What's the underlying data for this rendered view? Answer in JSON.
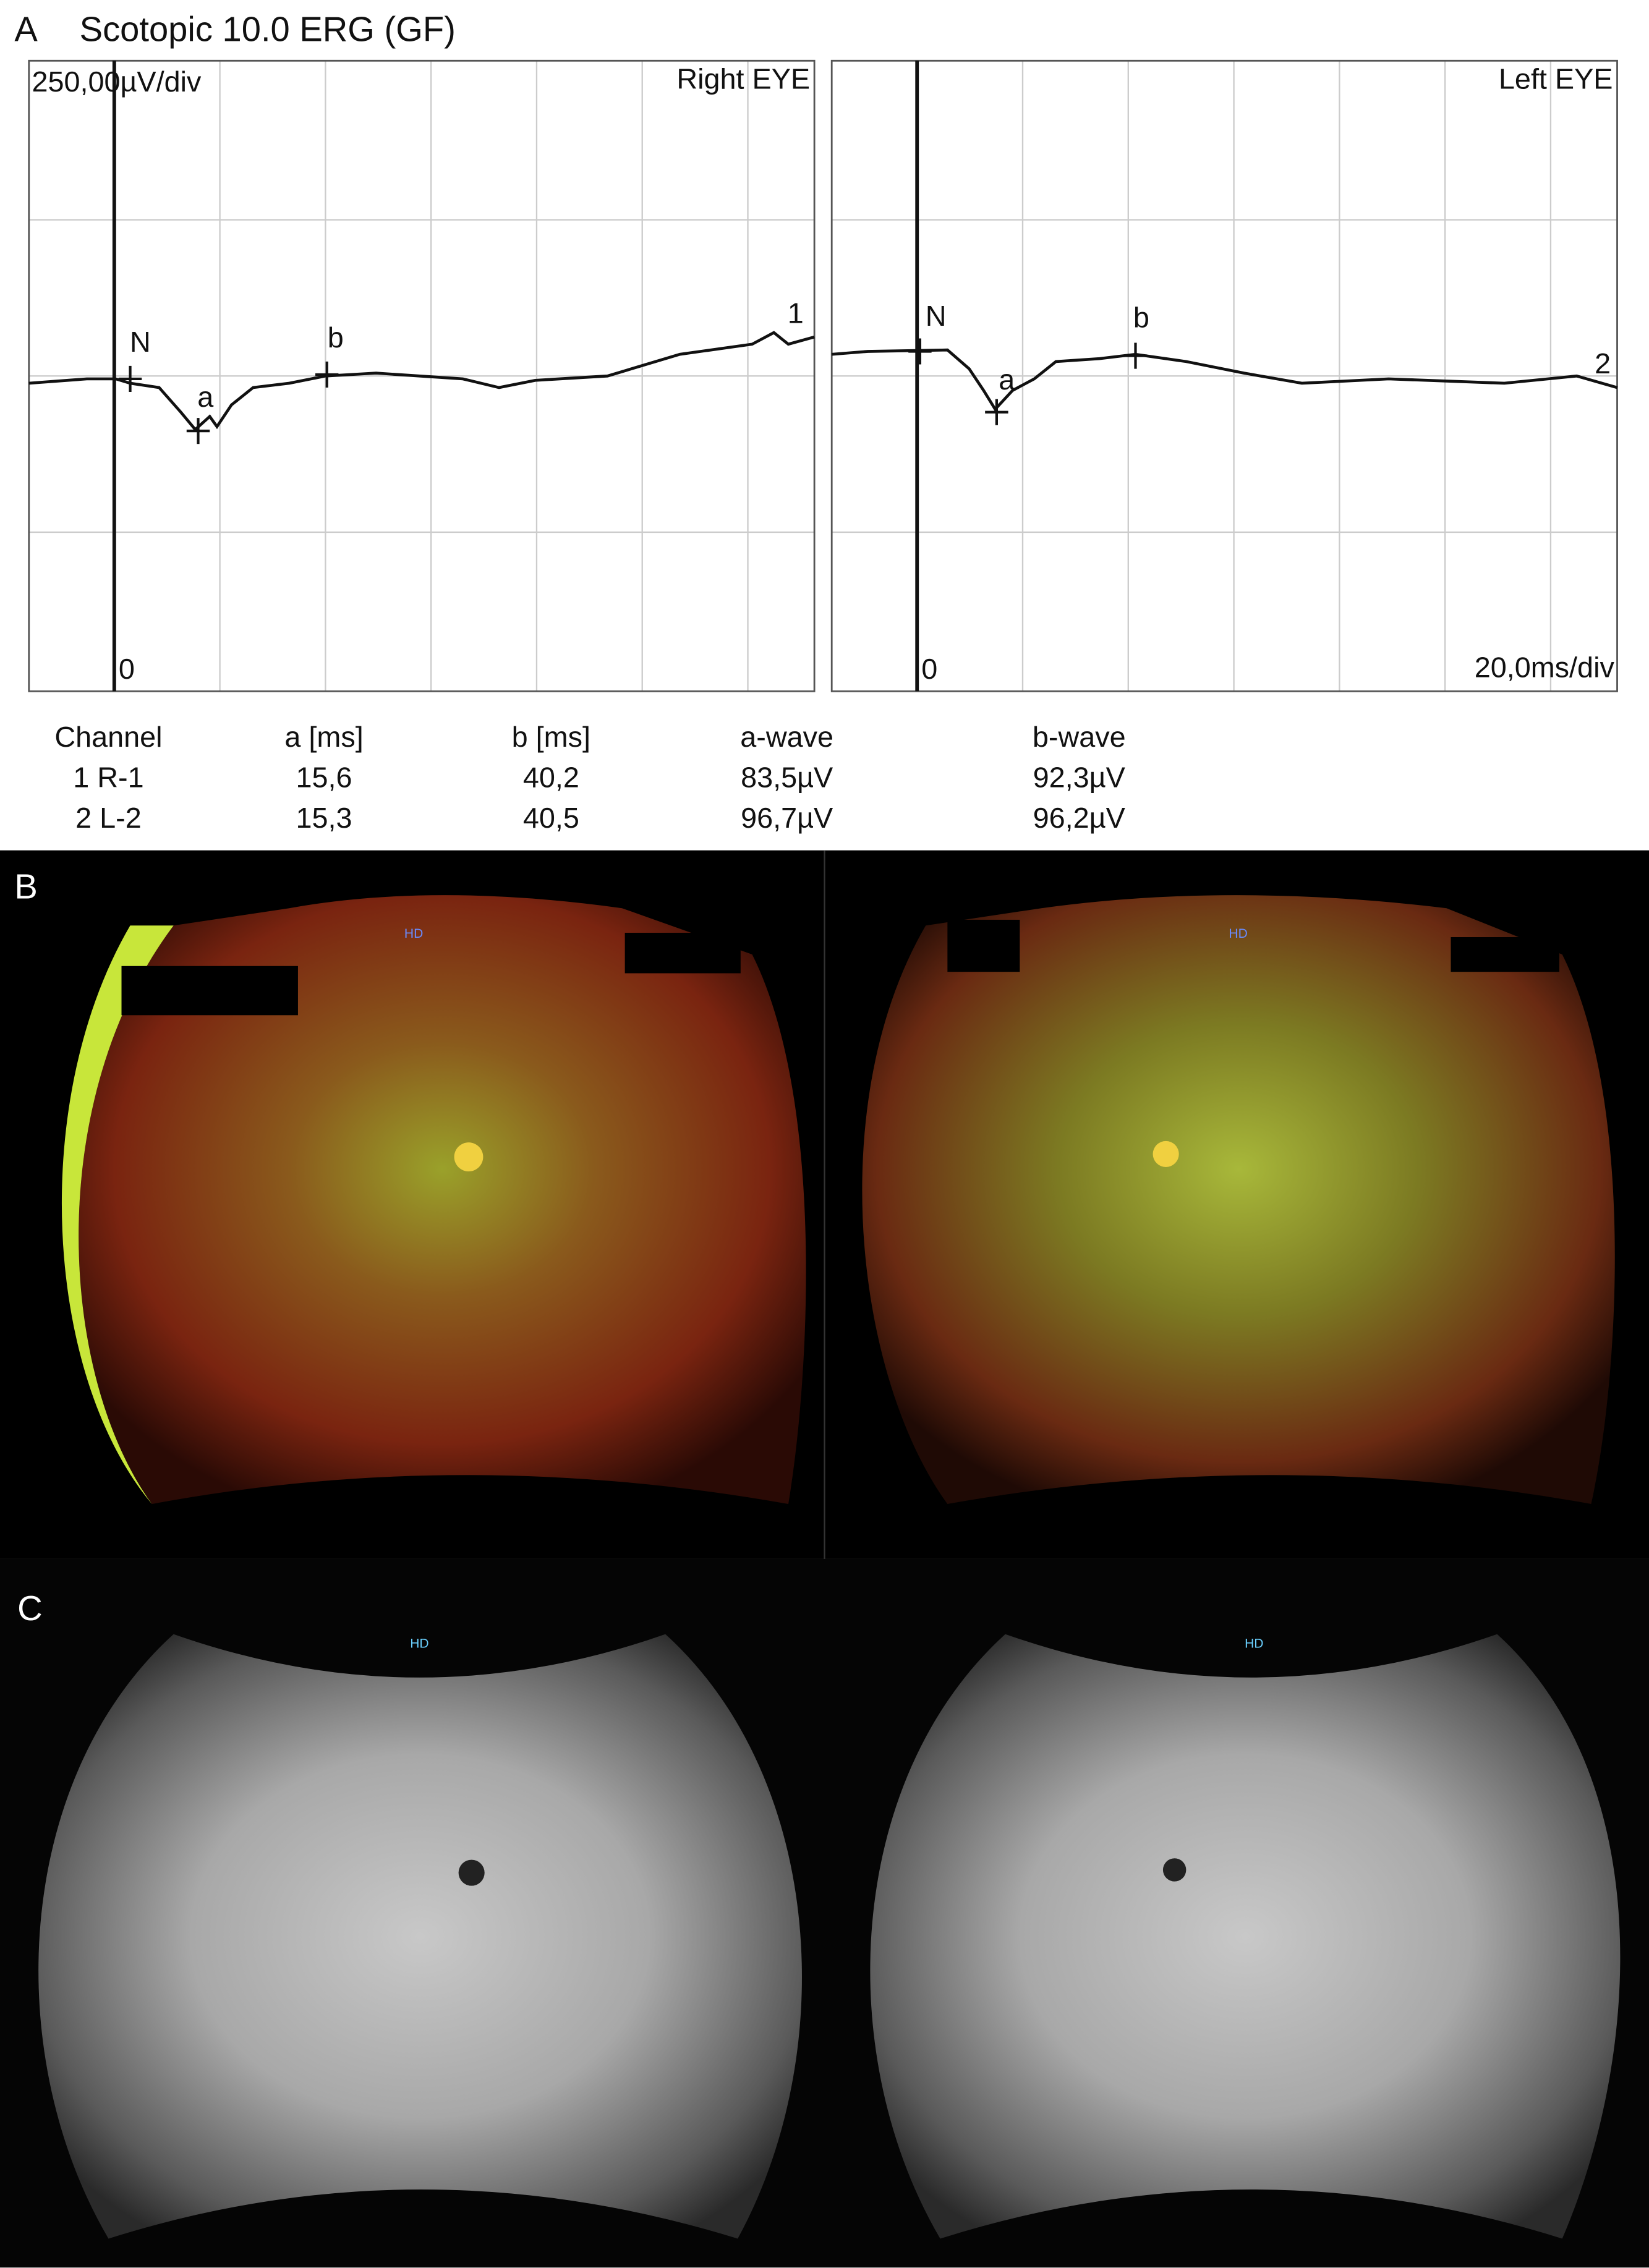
{
  "panel_a": {
    "label": "A",
    "title": "Scotopic 10.0 ERG (GF)",
    "amplitude_scale": "250,00µV/div",
    "time_scale": "20,0ms/div",
    "plots": [
      {
        "eye": "Right EYE",
        "zero": "0",
        "markers": [
          "N",
          "a",
          "b"
        ],
        "channel": "1"
      },
      {
        "eye": "Left EYE",
        "zero": "0",
        "markers": [
          "N",
          "a",
          "b"
        ],
        "channel": "2"
      }
    ],
    "table": {
      "header": [
        "Channel",
        "a [ms]",
        "b [ms]",
        "a-wave",
        "b-wave"
      ],
      "rows": [
        [
          "1 R-1",
          "15,6",
          "40,2",
          "83,5µV",
          "92,3µV"
        ],
        [
          "2 L-2",
          "15,3",
          "40,5",
          "96,7µV",
          "96,2µV"
        ]
      ]
    }
  },
  "panel_b": {
    "label": "B",
    "images": [
      {
        "tag": "HD"
      },
      {
        "tag": "HD"
      }
    ]
  },
  "panel_c": {
    "label": "C",
    "images": [
      {
        "tag": "HD"
      },
      {
        "tag": "HD"
      }
    ]
  }
}
